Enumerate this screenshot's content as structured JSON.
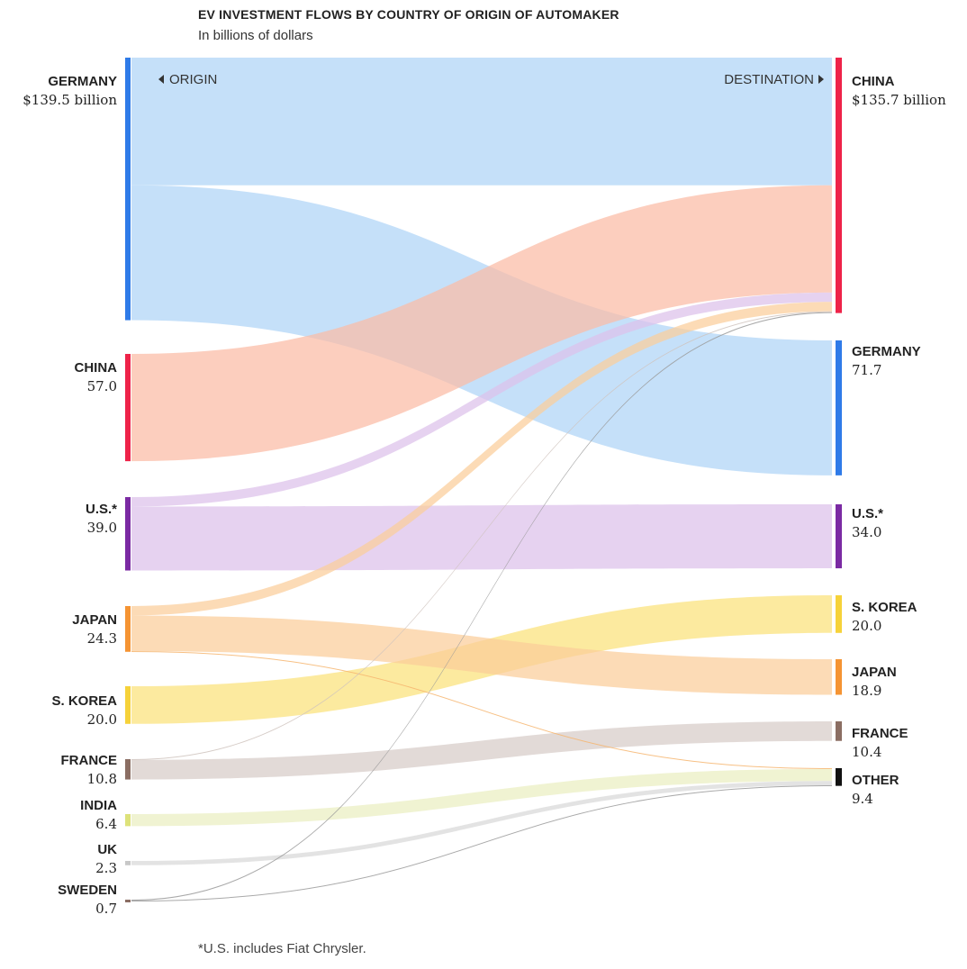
{
  "chart_data": {
    "type": "sankey",
    "title": "EV INVESTMENT FLOWS BY COUNTRY OF ORIGIN OF AUTOMAKER",
    "subtitle": "In billions of dollars",
    "origin_label": "ORIGIN",
    "destination_label": "DESTINATION",
    "footnote": "*U.S. includes Fiat Chrysler.",
    "sources": [
      {
        "id": "germany",
        "label": "GERMANY",
        "value": 139.5,
        "value_label": "$139.5 billion",
        "color": "#2f7be8"
      },
      {
        "id": "china",
        "label": "CHINA",
        "value": 57.0,
        "value_label": "57.0",
        "color": "#ee2349"
      },
      {
        "id": "us",
        "label": "U.S.*",
        "value": 39.0,
        "value_label": "39.0",
        "color": "#7b2aa3"
      },
      {
        "id": "japan",
        "label": "JAPAN",
        "value": 24.3,
        "value_label": "24.3",
        "color": "#f59433"
      },
      {
        "id": "skorea",
        "label": "S. KOREA",
        "value": 20.0,
        "value_label": "20.0",
        "color": "#f6d23a"
      },
      {
        "id": "france",
        "label": "FRANCE",
        "value": 10.8,
        "value_label": "10.8",
        "color": "#8b6e63"
      },
      {
        "id": "india",
        "label": "INDIA",
        "value": 6.4,
        "value_label": "6.4",
        "color": "#dde27a"
      },
      {
        "id": "uk",
        "label": "UK",
        "value": 2.3,
        "value_label": "2.3",
        "color": "#c8c8c8"
      },
      {
        "id": "sweden",
        "label": "SWEDEN",
        "value": 0.7,
        "value_label": "0.7",
        "color": "#8b6e63"
      }
    ],
    "destinations": [
      {
        "id": "china",
        "label": "CHINA",
        "value": 135.7,
        "value_label": "$135.7 billion",
        "color": "#ee2349"
      },
      {
        "id": "germany",
        "label": "GERMANY",
        "value": 71.7,
        "value_label": "71.7",
        "color": "#2f7be8"
      },
      {
        "id": "us",
        "label": "U.S.*",
        "value": 34.0,
        "value_label": "34.0",
        "color": "#7b2aa3"
      },
      {
        "id": "skorea",
        "label": "S. KOREA",
        "value": 20.0,
        "value_label": "20.0",
        "color": "#f6d23a"
      },
      {
        "id": "japan",
        "label": "JAPAN",
        "value": 18.9,
        "value_label": "18.9",
        "color": "#f59433"
      },
      {
        "id": "france",
        "label": "FRANCE",
        "value": 10.4,
        "value_label": "10.4",
        "color": "#8b6e63"
      },
      {
        "id": "other",
        "label": "OTHER",
        "value": 9.4,
        "value_label": "9.4",
        "color": "#111111"
      }
    ],
    "flows": [
      {
        "source": "germany",
        "target": "china",
        "value": 67.8,
        "color": "#aed4f6"
      },
      {
        "source": "germany",
        "target": "germany",
        "value": 71.7,
        "color": "#aed4f6"
      },
      {
        "source": "china",
        "target": "china",
        "value": 57.0,
        "color": "#fbbba5"
      },
      {
        "source": "us",
        "target": "china",
        "value": 5.0,
        "color": "#dcc0ea"
      },
      {
        "source": "us",
        "target": "us",
        "value": 34.0,
        "color": "#dcc0ea"
      },
      {
        "source": "japan",
        "target": "china",
        "value": 5.0,
        "color": "#fbcd9a"
      },
      {
        "source": "japan",
        "target": "japan",
        "value": 18.9,
        "color": "#fbcd9a"
      },
      {
        "source": "japan",
        "target": "other",
        "value": 0.4,
        "color": "#f6b56f"
      },
      {
        "source": "skorea",
        "target": "skorea",
        "value": 20.0,
        "color": "#fbe27a"
      },
      {
        "source": "france",
        "target": "china",
        "value": 0.4,
        "color": "#cfc3bd"
      },
      {
        "source": "france",
        "target": "france",
        "value": 10.4,
        "color": "#d7ccc8"
      },
      {
        "source": "india",
        "target": "other",
        "value": 6.4,
        "color": "#eaeec0"
      },
      {
        "source": "uk",
        "target": "other",
        "value": 2.3,
        "color": "#d8d8d8"
      },
      {
        "source": "sweden",
        "target": "china",
        "value": 0.5,
        "color": "#9a9a9a"
      },
      {
        "source": "sweden",
        "target": "other",
        "value": 0.2,
        "color": "#9a9a9a"
      }
    ]
  }
}
